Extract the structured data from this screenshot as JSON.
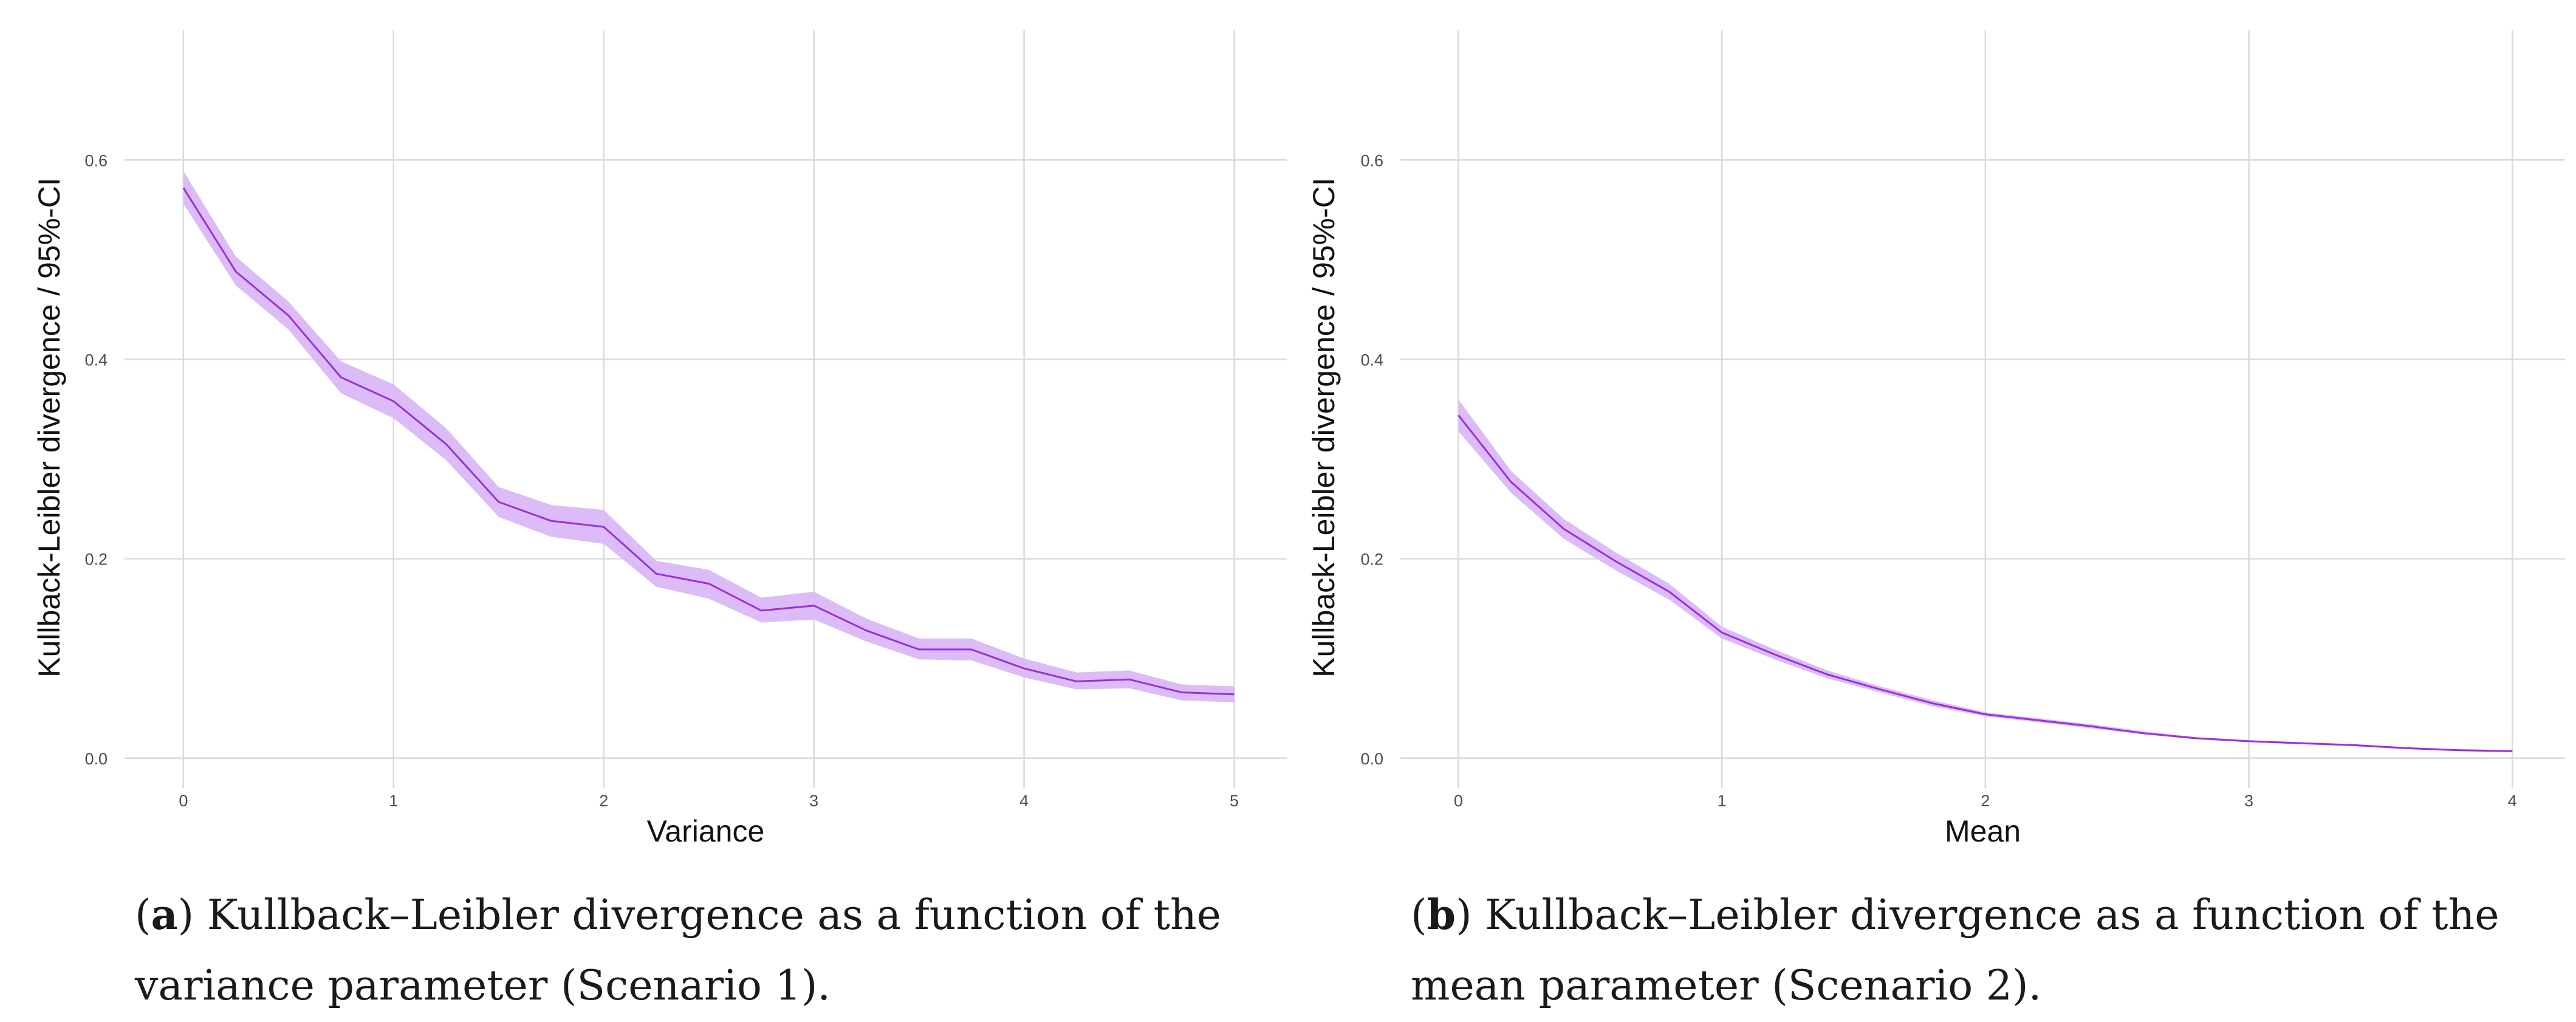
{
  "chart_data": [
    {
      "type": "line",
      "panel": "a",
      "title": "",
      "xlabel": "Variance",
      "ylabel": "Kullback-Leibler divergence / 95%-CI",
      "xlim": [
        -0.28,
        5.25
      ],
      "ylim": [
        -0.03,
        0.73
      ],
      "x_ticks": [
        0,
        1,
        2,
        3,
        4,
        5
      ],
      "x_tick_labels": [
        "0",
        "1",
        "2",
        "3",
        "4",
        "5"
      ],
      "y_ticks": [
        0.0,
        0.2,
        0.4,
        0.6
      ],
      "y_tick_labels": [
        "0.0",
        "0.2",
        "0.4",
        "0.6"
      ],
      "grid": true,
      "series": [
        {
          "name": "KL divergence",
          "color": "#9b30d9",
          "band_color": "#dcbcf7",
          "x": [
            0,
            0.25,
            0.5,
            0.75,
            1.0,
            1.25,
            1.5,
            1.75,
            2.0,
            2.25,
            2.5,
            2.75,
            3.0,
            3.25,
            3.5,
            3.75,
            4.0,
            4.25,
            4.5,
            4.75,
            5.0
          ],
          "y": [
            0.572,
            0.488,
            0.444,
            0.382,
            0.358,
            0.315,
            0.257,
            0.238,
            0.232,
            0.185,
            0.175,
            0.148,
            0.153,
            0.128,
            0.109,
            0.109,
            0.09,
            0.077,
            0.079,
            0.066,
            0.064
          ],
          "ci_lower": [
            0.556,
            0.474,
            0.43,
            0.366,
            0.341,
            0.299,
            0.242,
            0.222,
            0.215,
            0.172,
            0.16,
            0.136,
            0.139,
            0.117,
            0.099,
            0.098,
            0.081,
            0.069,
            0.07,
            0.058,
            0.056
          ],
          "ci_upper": [
            0.589,
            0.503,
            0.458,
            0.398,
            0.375,
            0.331,
            0.272,
            0.254,
            0.249,
            0.198,
            0.189,
            0.161,
            0.167,
            0.14,
            0.12,
            0.12,
            0.1,
            0.086,
            0.088,
            0.074,
            0.072
          ]
        }
      ]
    },
    {
      "type": "line",
      "panel": "b",
      "title": "",
      "xlabel": "Mean",
      "ylabel": "Kullback-Leibler divergence / 95%-CI",
      "xlim": [
        -0.22,
        4.2
      ],
      "ylim": [
        -0.03,
        0.73
      ],
      "x_ticks": [
        0,
        1,
        2,
        3,
        4
      ],
      "x_tick_labels": [
        "0",
        "1",
        "2",
        "3",
        "4"
      ],
      "y_ticks": [
        0.0,
        0.2,
        0.4,
        0.6
      ],
      "y_tick_labels": [
        "0.0",
        "0.2",
        "0.4",
        "0.6"
      ],
      "grid": true,
      "series": [
        {
          "name": "KL divergence",
          "color": "#9b30d9",
          "band_color": "#dcbcf7",
          "x": [
            0,
            0.2,
            0.4,
            0.6,
            0.8,
            1.0,
            1.2,
            1.4,
            1.6,
            1.8,
            2.0,
            2.2,
            2.4,
            2.6,
            2.8,
            3.0,
            3.2,
            3.4,
            3.6,
            3.8,
            4.0
          ],
          "y": [
            0.344,
            0.277,
            0.23,
            0.197,
            0.167,
            0.126,
            0.104,
            0.084,
            0.069,
            0.055,
            0.044,
            0.038,
            0.032,
            0.025,
            0.02,
            0.017,
            0.015,
            0.013,
            0.01,
            0.008,
            0.007
          ],
          "ci_lower": [
            0.328,
            0.266,
            0.22,
            0.188,
            0.159,
            0.12,
            0.099,
            0.08,
            0.066,
            0.052,
            0.042,
            0.036,
            0.03,
            0.024,
            0.019,
            0.016,
            0.014,
            0.012,
            0.009,
            0.007,
            0.006
          ],
          "ci_upper": [
            0.36,
            0.288,
            0.24,
            0.206,
            0.175,
            0.132,
            0.109,
            0.088,
            0.072,
            0.058,
            0.046,
            0.04,
            0.034,
            0.027,
            0.021,
            0.018,
            0.016,
            0.014,
            0.011,
            0.009,
            0.008
          ]
        }
      ]
    }
  ],
  "captions": {
    "a": {
      "label": "a",
      "line1": ") Kullback–Leibler divergence as a function of the",
      "line2": "variance parameter (Scenario 1)."
    },
    "b": {
      "label": "b",
      "line1": ") Kullback–Leibler divergence as a function of the",
      "line2": "mean parameter (Scenario 2)."
    }
  }
}
